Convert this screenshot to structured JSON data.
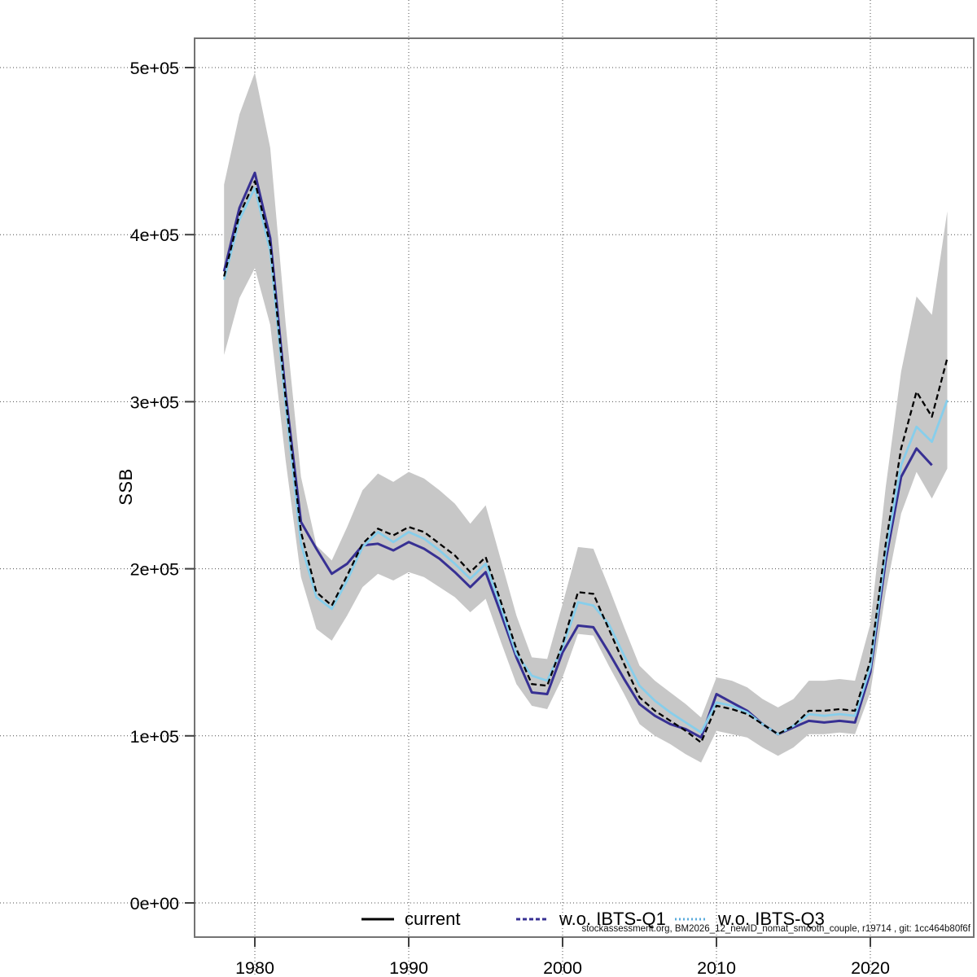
{
  "figure": {
    "y_axis_title": "SSB",
    "footnote": "stockassessment.org, BM2026_12_newID_nomat_smooth_couple, r19714 , git: 1cc464b80f6f"
  },
  "legend": [
    {
      "label": "current",
      "color": "#000000",
      "sample_dash": ""
    },
    {
      "label": "w.o. IBTS-Q1",
      "color": "#373093",
      "sample_dash": "5 3"
    },
    {
      "label": "w.o. IBTS-Q3",
      "color": "#5aabdc",
      "sample_dash": "2 3"
    }
  ],
  "chart_data": {
    "type": "line",
    "title": "",
    "xlabel": "",
    "ylabel": "SSB",
    "xlim": [
      1976.1,
      2026.7
    ],
    "ylim": [
      0,
      517000
    ],
    "grid": true,
    "legend_position": "bottom",
    "x_ticks": [
      {
        "value": 1980,
        "label": "1980"
      },
      {
        "value": 1990,
        "label": "1990"
      },
      {
        "value": 2000,
        "label": "2000"
      },
      {
        "value": 2010,
        "label": "2010"
      },
      {
        "value": 2020,
        "label": "2020"
      }
    ],
    "y_ticks": [
      {
        "value": 0,
        "label": "0e+00"
      },
      {
        "value": 100000,
        "label": "1e+05"
      },
      {
        "value": 200000,
        "label": "2e+05"
      },
      {
        "value": 300000,
        "label": "3e+05"
      },
      {
        "value": 400000,
        "label": "4e+05"
      },
      {
        "value": 500000,
        "label": "5e+05"
      }
    ],
    "band": {
      "name": "current 95% CI",
      "color": "#c7c7c7",
      "years": [
        1978,
        1979,
        1980,
        1981,
        1982,
        1983,
        1984,
        1985,
        1986,
        1987,
        1988,
        1989,
        1990,
        1991,
        1992,
        1993,
        1994,
        1995,
        1996,
        1997,
        1998,
        1999,
        2000,
        2001,
        2002,
        2003,
        2004,
        2005,
        2006,
        2007,
        2008,
        2009,
        2010,
        2011,
        2012,
        2013,
        2014,
        2015,
        2016,
        2017,
        2018,
        2019,
        2020,
        2021,
        2022,
        2023,
        2024,
        2025
      ],
      "lower": [
        328000,
        362000,
        380000,
        346000,
        265000,
        195000,
        164000,
        157000,
        172000,
        189000,
        197000,
        193000,
        198000,
        195000,
        189000,
        183000,
        174000,
        182000,
        156000,
        131000,
        118000,
        116000,
        135000,
        161000,
        160000,
        142000,
        125000,
        107000,
        100000,
        95000,
        89000,
        84000,
        103000,
        101000,
        99000,
        93000,
        88000,
        93000,
        101000,
        101000,
        102000,
        101000,
        126000,
        186000,
        233000,
        258000,
        242000,
        260000
      ],
      "upper": [
        430000,
        472000,
        497000,
        452000,
        347000,
        255000,
        214000,
        205000,
        225000,
        247000,
        257000,
        252000,
        258000,
        254000,
        247000,
        239000,
        227000,
        238000,
        205000,
        172000,
        147000,
        146000,
        179000,
        213000,
        212000,
        189000,
        165000,
        142000,
        133000,
        126000,
        119000,
        111000,
        135000,
        133000,
        129000,
        122000,
        117000,
        122000,
        133000,
        133000,
        134000,
        133000,
        167000,
        249000,
        318000,
        363000,
        352000,
        414000
      ]
    },
    "series": [
      {
        "name": "w.o. IBTS-Q1",
        "color": "#373093",
        "width": 3,
        "dash": "",
        "years": [
          1978,
          1979,
          1980,
          1981,
          1982,
          1983,
          1984,
          1985,
          1986,
          1987,
          1988,
          1989,
          1990,
          1991,
          1992,
          1993,
          1994,
          1995,
          1996,
          1997,
          1998,
          1999,
          2000,
          2001,
          2002,
          2003,
          2004,
          2005,
          2006,
          2007,
          2008,
          2009,
          2010,
          2011,
          2012,
          2013,
          2014,
          2015,
          2016,
          2017,
          2018,
          2019,
          2020,
          2021,
          2022,
          2023,
          2024
        ],
        "values": [
          378000,
          416000,
          437000,
          398000,
          305000,
          228000,
          212000,
          197000,
          203000,
          214000,
          215000,
          211000,
          216000,
          212000,
          206000,
          198000,
          189000,
          198000,
          173000,
          147000,
          126000,
          125000,
          150000,
          166000,
          165000,
          150000,
          134000,
          119000,
          112000,
          107000,
          104000,
          99000,
          125000,
          120000,
          115000,
          107000,
          101000,
          105000,
          109000,
          108000,
          109000,
          108000,
          138000,
          205000,
          255000,
          272000,
          262000
        ]
      },
      {
        "name": "w.o. IBTS-Q3",
        "color": "#87ceeb",
        "width": 2.8,
        "dash": "",
        "years": [
          1978,
          1979,
          1980,
          1981,
          1982,
          1983,
          1984,
          1985,
          1986,
          1987,
          1988,
          1989,
          1990,
          1991,
          1992,
          1993,
          1994,
          1995,
          1996,
          1997,
          1998,
          1999,
          2000,
          2001,
          2002,
          2003,
          2004,
          2005,
          2006,
          2007,
          2008,
          2009,
          2010,
          2011,
          2012,
          2013,
          2014,
          2015,
          2016,
          2017,
          2018,
          2019,
          2020,
          2021,
          2022,
          2023,
          2024,
          2025
        ],
        "values": [
          373000,
          409000,
          428000,
          390000,
          298000,
          215000,
          183000,
          176000,
          193000,
          213000,
          222000,
          216000,
          222000,
          218000,
          211000,
          203000,
          194000,
          203000,
          177000,
          149000,
          136000,
          133000,
          153000,
          180000,
          178000,
          167000,
          148000,
          130000,
          121000,
          114000,
          108000,
          102000,
          120000,
          118000,
          114000,
          107000,
          101000,
          106000,
          113000,
          112000,
          113000,
          112000,
          141000,
          210000,
          262000,
          285000,
          276000,
          301000
        ]
      },
      {
        "name": "current",
        "color": "#000000",
        "width": 2.3,
        "dash": "7 4",
        "years": [
          1978,
          1979,
          1980,
          1981,
          1982,
          1983,
          1984,
          1985,
          1986,
          1987,
          1988,
          1989,
          1990,
          1991,
          1992,
          1993,
          1994,
          1995,
          1996,
          1997,
          1998,
          1999,
          2000,
          2001,
          2002,
          2003,
          2004,
          2005,
          2006,
          2007,
          2008,
          2009,
          2010,
          2011,
          2012,
          2013,
          2014,
          2015,
          2016,
          2017,
          2018,
          2019,
          2020,
          2021,
          2022,
          2023,
          2024,
          2025
        ],
        "values": [
          375000,
          412000,
          432000,
          394000,
          302000,
          222000,
          186000,
          178000,
          196000,
          215000,
          224000,
          220000,
          225000,
          222000,
          215000,
          208000,
          198000,
          207000,
          180000,
          152000,
          131000,
          130000,
          155000,
          186000,
          185000,
          164000,
          143000,
          123000,
          115000,
          109000,
          103000,
          96000,
          118000,
          116000,
          113000,
          107000,
          101000,
          106000,
          115000,
          115000,
          116000,
          115000,
          145000,
          215000,
          272000,
          306000,
          291000,
          326000
        ]
      }
    ],
    "footnote": "stockassessment.org, BM2026_12_newID_nomat_smooth_couple, r19714 , git: 1cc464b80f6f"
  }
}
